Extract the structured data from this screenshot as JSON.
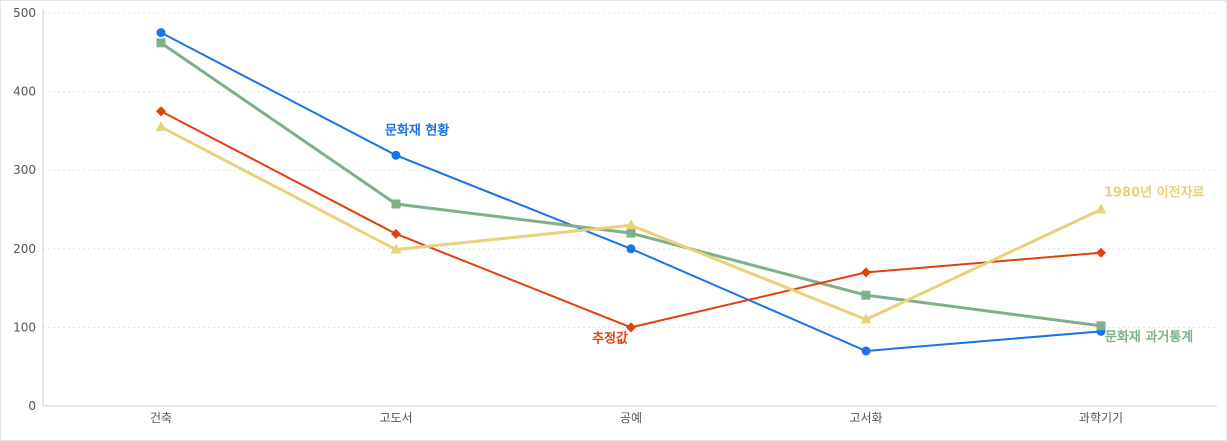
{
  "chart_data": {
    "type": "line",
    "title": "",
    "xlabel": "",
    "ylabel": "",
    "categories": [
      "건축",
      "고도서",
      "공예",
      "고서화",
      "과학기기"
    ],
    "ylim": [
      0,
      500
    ],
    "yticks": [
      0,
      100,
      200,
      300,
      400,
      500
    ],
    "grid": true,
    "series": [
      {
        "name": "문화재 현황",
        "color": "#1a73e8",
        "marker": "circle",
        "values": [
          475,
          319,
          200,
          70,
          95
        ],
        "label_at": 1
      },
      {
        "name": "문화재 과거통계",
        "color": "#7fb08a",
        "marker": "square",
        "values": [
          462,
          257,
          220,
          141,
          102
        ],
        "label_at": 4
      },
      {
        "name": "추정값",
        "color": "#e0410f",
        "marker": "diamond",
        "values": [
          375,
          219,
          100,
          170,
          195
        ],
        "label_at": 2
      },
      {
        "name": "1980년 이전자료",
        "color": "#e8d27a",
        "marker": "triangle",
        "values": [
          355,
          199,
          230,
          110,
          250
        ],
        "label_at": 4
      }
    ]
  }
}
